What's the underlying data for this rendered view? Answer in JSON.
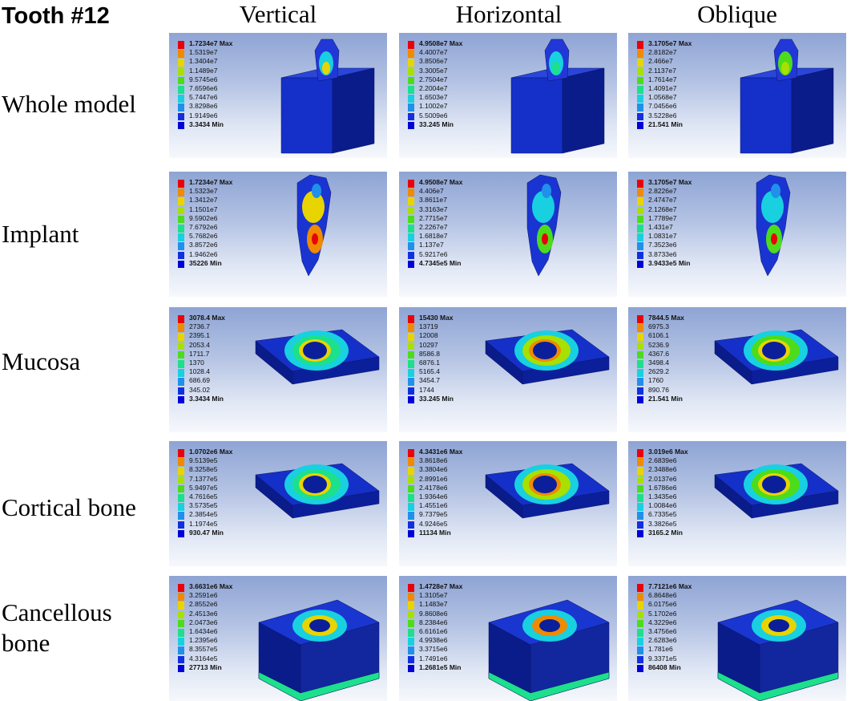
{
  "figure": {
    "title": "Tooth #12",
    "columns": [
      "Vertical",
      "Horizontal",
      "Oblique"
    ],
    "rows": [
      {
        "label": "Whole model",
        "model": "crown-on-block",
        "panels": [
          {
            "legend": [
              "1.7234e7 Max",
              "1.5319e7",
              "1.3404e7",
              "1.1489e7",
              "9.5745e6",
              "7.6596e6",
              "5.7447e6",
              "3.8298e6",
              "1.9149e6",
              "3.3434 Min"
            ]
          },
          {
            "legend": [
              "4.9508e7 Max",
              "4.4007e7",
              "3.8506e7",
              "3.3005e7",
              "2.7504e7",
              "2.2004e7",
              "1.6503e7",
              "1.1002e7",
              "5.5009e6",
              "33.245 Min"
            ]
          },
          {
            "legend": [
              "3.1705e7 Max",
              "2.8182e7",
              "2.466e7",
              "2.1137e7",
              "1.7614e7",
              "1.4091e7",
              "1.0568e7",
              "7.0456e6",
              "3.5228e6",
              "21.541 Min"
            ]
          }
        ]
      },
      {
        "label": "Implant",
        "model": "implant",
        "panels": [
          {
            "legend": [
              "1.7234e7 Max",
              "1.5323e7",
              "1.3412e7",
              "1.1501e7",
              "9.5902e6",
              "7.6792e6",
              "5.7682e6",
              "3.8572e6",
              "1.9462e6",
              "35226 Min"
            ]
          },
          {
            "legend": [
              "4.9508e7 Max",
              "4.406e7",
              "3.8611e7",
              "3.3163e7",
              "2.7715e7",
              "2.2267e7",
              "1.6818e7",
              "1.137e7",
              "5.9217e6",
              "4.7345e5 Min"
            ]
          },
          {
            "legend": [
              "3.1705e7 Max",
              "2.8226e7",
              "2.4747e7",
              "2.1268e7",
              "1.7789e7",
              "1.431e7",
              "1.0831e7",
              "7.3523e6",
              "3.8733e6",
              "3.9433e5 Min"
            ]
          }
        ]
      },
      {
        "label": "Mucosa",
        "model": "slab",
        "panels": [
          {
            "legend": [
              "3078.4 Max",
              "2736.7",
              "2395.1",
              "2053.4",
              "1711.7",
              "1370",
              "1028.4",
              "686.69",
              "345.02",
              "3.3434 Min"
            ]
          },
          {
            "legend": [
              "15430 Max",
              "13719",
              "12008",
              "10297",
              "8586.8",
              "6876.1",
              "5165.4",
              "3454.7",
              "1744",
              "33.245 Min"
            ]
          },
          {
            "legend": [
              "7844.5 Max",
              "6975.3",
              "6106.1",
              "5236.9",
              "4367.6",
              "3498.4",
              "2629.2",
              "1760",
              "890.76",
              "21.541 Min"
            ]
          }
        ]
      },
      {
        "label": "Cortical bone",
        "model": "slab",
        "panels": [
          {
            "legend": [
              "1.0702e6 Max",
              "9.5139e5",
              "8.3258e5",
              "7.1377e5",
              "5.9497e5",
              "4.7616e5",
              "3.5735e5",
              "2.3854e5",
              "1.1974e5",
              "930.47 Min"
            ]
          },
          {
            "legend": [
              "4.3431e6 Max",
              "3.8618e6",
              "3.3804e6",
              "2.8991e6",
              "2.4178e6",
              "1.9364e6",
              "1.4551e6",
              "9.7379e5",
              "4.9246e5",
              "11134 Min"
            ]
          },
          {
            "legend": [
              "3.019e6 Max",
              "2.6839e6",
              "2.3488e6",
              "2.0137e6",
              "1.6786e6",
              "1.3435e6",
              "1.0084e6",
              "6.7335e5",
              "3.3826e5",
              "3165.2 Min"
            ]
          }
        ]
      },
      {
        "label": "Cancellous bone",
        "model": "cube",
        "panels": [
          {
            "legend": [
              "3.6631e6 Max",
              "3.2591e6",
              "2.8552e6",
              "2.4513e6",
              "2.0473e6",
              "1.6434e6",
              "1.2395e6",
              "8.3557e5",
              "4.3164e5",
              "27713 Min"
            ]
          },
          {
            "legend": [
              "1.4728e7 Max",
              "1.3105e7",
              "1.1483e7",
              "9.8608e6",
              "8.2384e6",
              "6.6161e6",
              "4.9938e6",
              "3.3715e6",
              "1.7491e6",
              "1.2681e5 Min"
            ]
          },
          {
            "legend": [
              "7.7121e6 Max",
              "6.8648e6",
              "6.0175e6",
              "5.1702e6",
              "4.3229e6",
              "3.4756e6",
              "2.6283e6",
              "1.781e6",
              "9.3371e5",
              "86408 Min"
            ]
          }
        ]
      }
    ],
    "colors": {
      "scale": [
        "#e8000b",
        "#f08a00",
        "#e8d400",
        "#a8e000",
        "#4cdc1c",
        "#1ce08c",
        "#18d0e0",
        "#2090ea",
        "#1030e0",
        "#0000d6"
      ],
      "model_blue": "#1530c8",
      "model_dark": "#0a1c8a"
    }
  }
}
